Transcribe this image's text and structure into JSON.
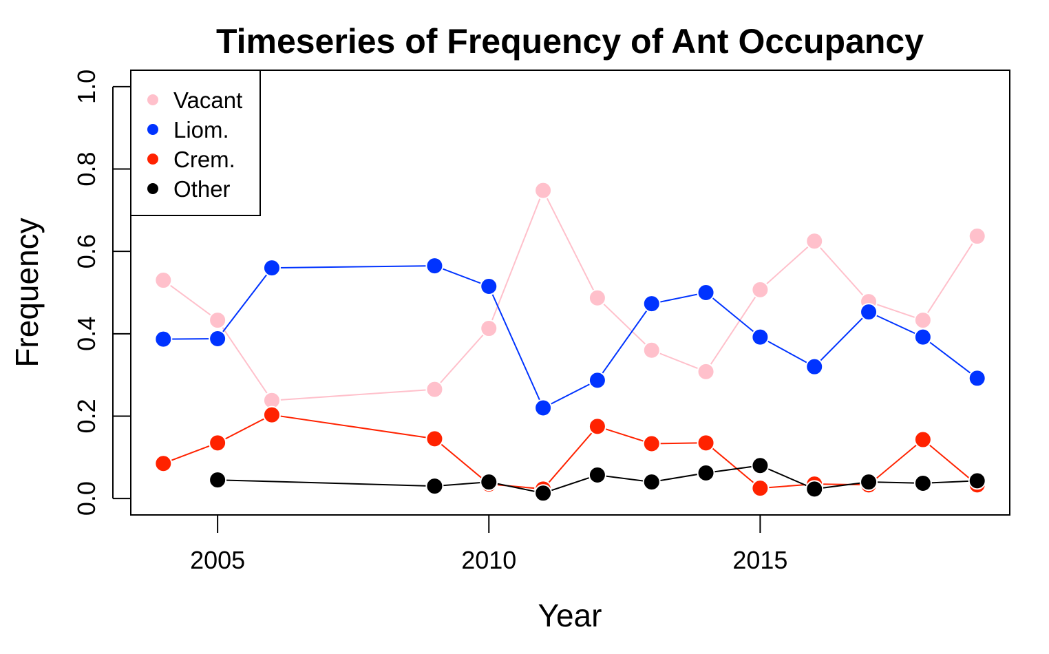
{
  "chart_data": {
    "type": "line",
    "title": "Timeseries of Frequency of Ant Occupancy",
    "xlabel": "Year",
    "ylabel": "Frequency",
    "xlim": [
      2003.4,
      2019.6
    ],
    "ylim": [
      -0.04,
      1.04
    ],
    "x_ticks": [
      2005,
      2010,
      2015
    ],
    "y_ticks": [
      0.0,
      0.2,
      0.4,
      0.6,
      0.8,
      1.0
    ],
    "x_tick_labels": [
      "2005",
      "2010",
      "2015"
    ],
    "y_tick_labels": [
      "0.0",
      "0.2",
      "0.4",
      "0.6",
      "0.8",
      "1.0"
    ],
    "grid": false,
    "legend_position": "top-left",
    "series": [
      {
        "name": "Vacant",
        "color": "#ffc0cb",
        "points": [
          [
            2004,
            0.53
          ],
          [
            2005,
            0.433
          ],
          [
            2006,
            0.238
          ],
          [
            2009,
            0.265
          ],
          [
            2010,
            0.413
          ],
          [
            2011,
            0.748
          ],
          [
            2012,
            0.487
          ],
          [
            2013,
            0.36
          ],
          [
            2014,
            0.308
          ],
          [
            2015,
            0.507
          ],
          [
            2016,
            0.625
          ],
          [
            2017,
            0.478
          ],
          [
            2018,
            0.433
          ],
          [
            2019,
            0.637
          ]
        ]
      },
      {
        "name": "Liom.",
        "color": "#0033ff",
        "points": [
          [
            2004,
            0.387
          ],
          [
            2005,
            0.388
          ],
          [
            2006,
            0.56
          ],
          [
            2009,
            0.565
          ],
          [
            2010,
            0.515
          ],
          [
            2011,
            0.22
          ],
          [
            2012,
            0.287
          ],
          [
            2013,
            0.473
          ],
          [
            2014,
            0.5
          ],
          [
            2015,
            0.392
          ],
          [
            2016,
            0.32
          ],
          [
            2017,
            0.453
          ],
          [
            2018,
            0.392
          ],
          [
            2019,
            0.292
          ]
        ]
      },
      {
        "name": "Crem.",
        "color": "#ff2200",
        "points": [
          [
            2004,
            0.085
          ],
          [
            2005,
            0.135
          ],
          [
            2006,
            0.203
          ],
          [
            2009,
            0.145
          ],
          [
            2010,
            0.035
          ],
          [
            2011,
            0.023
          ],
          [
            2012,
            0.175
          ],
          [
            2013,
            0.133
          ],
          [
            2014,
            0.135
          ],
          [
            2015,
            0.025
          ],
          [
            2016,
            0.035
          ],
          [
            2017,
            0.033
          ],
          [
            2018,
            0.143
          ],
          [
            2019,
            0.033
          ]
        ]
      },
      {
        "name": "Other",
        "color": "#000000",
        "points": [
          [
            2005,
            0.045
          ],
          [
            2009,
            0.03
          ],
          [
            2010,
            0.04
          ],
          [
            2011,
            0.013
          ],
          [
            2012,
            0.057
          ],
          [
            2013,
            0.04
          ],
          [
            2014,
            0.062
          ],
          [
            2015,
            0.08
          ],
          [
            2016,
            0.023
          ],
          [
            2017,
            0.04
          ],
          [
            2018,
            0.037
          ],
          [
            2019,
            0.043
          ]
        ]
      }
    ]
  }
}
